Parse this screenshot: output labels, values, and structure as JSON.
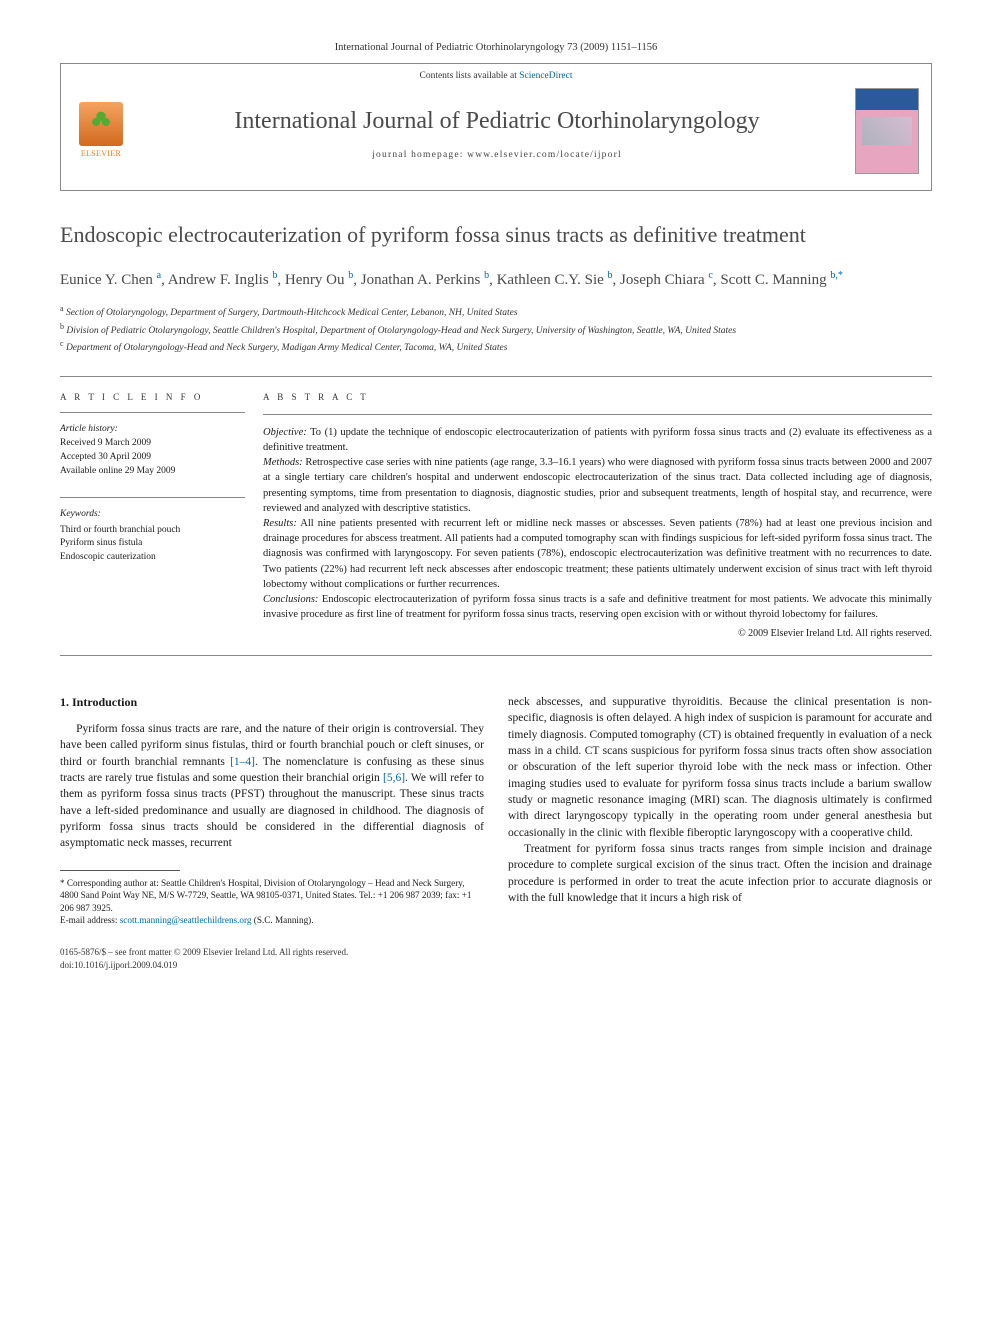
{
  "journal_ref": "International Journal of Pediatric Otorhinolaryngology 73 (2009) 1151–1156",
  "header": {
    "contents_prefix": "Contents lists available at ",
    "contents_link": "ScienceDirect",
    "journal_title": "International Journal of Pediatric Otorhinolaryngology",
    "homepage_label": "journal homepage: www.elsevier.com/locate/ijporl",
    "publisher_logo_text": "ELSEVIER"
  },
  "article": {
    "title": "Endoscopic electrocauterization of pyriform fossa sinus tracts as definitive treatment",
    "authors_html": "Eunice Y. Chen <sup>a</sup>, Andrew F. Inglis <sup>b</sup>, Henry Ou <sup>b</sup>, Jonathan A. Perkins <sup>b</sup>, Kathleen C.Y. Sie <sup>b</sup>, Joseph Chiara <sup>c</sup>, Scott C. Manning <sup>b,*</sup>",
    "affiliations": [
      {
        "sup": "a",
        "text": "Section of Otolaryngology, Department of Surgery, Dartmouth-Hitchcock Medical Center, Lebanon, NH, United States"
      },
      {
        "sup": "b",
        "text": "Division of Pediatric Otolaryngology, Seattle Children's Hospital, Department of Otolaryngology-Head and Neck Surgery, University of Washington, Seattle, WA, United States"
      },
      {
        "sup": "c",
        "text": "Department of Otolaryngology-Head and Neck Surgery, Madigan Army Medical Center, Tacoma, WA, United States"
      }
    ]
  },
  "info": {
    "heading": "A R T I C L E   I N F O",
    "history_label": "Article history:",
    "received": "Received 9 March 2009",
    "accepted": "Accepted 30 April 2009",
    "online": "Available online 29 May 2009",
    "keywords_label": "Keywords:",
    "keywords": [
      "Third or fourth branchial pouch",
      "Pyriform sinus fistula",
      "Endoscopic cauterization"
    ]
  },
  "abstract": {
    "heading": "A B S T R A C T",
    "objective_label": "Objective:",
    "objective": " To (1) update the technique of endoscopic electrocauterization of patients with pyriform fossa sinus tracts and (2) evaluate its effectiveness as a definitive treatment.",
    "methods_label": "Methods:",
    "methods": " Retrospective case series with nine patients (age range, 3.3–16.1 years) who were diagnosed with pyriform fossa sinus tracts between 2000 and 2007 at a single tertiary care children's hospital and underwent endoscopic electrocauterization of the sinus tract. Data collected including age of diagnosis, presenting symptoms, time from presentation to diagnosis, diagnostic studies, prior and subsequent treatments, length of hospital stay, and recurrence, were reviewed and analyzed with descriptive statistics.",
    "results_label": "Results:",
    "results": " All nine patients presented with recurrent left or midline neck masses or abscesses. Seven patients (78%) had at least one previous incision and drainage procedures for abscess treatment. All patients had a computed tomography scan with findings suspicious for left-sided pyriform fossa sinus tract. The diagnosis was confirmed with laryngoscopy. For seven patients (78%), endoscopic electrocauterization was definitive treatment with no recurrences to date. Two patients (22%) had recurrent left neck abscesses after endoscopic treatment; these patients ultimately underwent excision of sinus tract with left thyroid lobectomy without complications or further recurrences.",
    "conclusions_label": "Conclusions:",
    "conclusions": " Endoscopic electrocauterization of pyriform fossa sinus tracts is a safe and definitive treatment for most patients. We advocate this minimally invasive procedure as first line of treatment for pyriform fossa sinus tracts, reserving open excision with or without thyroid lobectomy for failures.",
    "copyright": "© 2009 Elsevier Ireland Ltd. All rights reserved."
  },
  "body": {
    "section_number": "1.",
    "section_title": "Introduction",
    "col1_p1_a": "Pyriform fossa sinus tracts are rare, and the nature of their origin is controversial. They have been called pyriform sinus fistulas, third or fourth branchial pouch or cleft sinuses, or third or fourth branchial remnants ",
    "col1_p1_ref1": "[1–4]",
    "col1_p1_b": ". The nomenclature is confusing as these sinus tracts are rarely true fistulas and some question their branchial origin ",
    "col1_p1_ref2": "[5,6]",
    "col1_p1_c": ". We will refer to them as pyriform fossa sinus tracts (PFST) throughout the manuscript. These sinus tracts have a left-sided predominance and usually are diagnosed in childhood. The diagnosis of pyriform fossa sinus tracts should be considered in the differential diagnosis of asymptomatic neck masses, recurrent",
    "col2_p1": "neck abscesses, and suppurative thyroiditis. Because the clinical presentation is non-specific, diagnosis is often delayed. A high index of suspicion is paramount for accurate and timely diagnosis. Computed tomography (CT) is obtained frequently in evaluation of a neck mass in a child. CT scans suspicious for pyriform fossa sinus tracts often show association or obscuration of the left superior thyroid lobe with the neck mass or infection. Other imaging studies used to evaluate for pyriform fossa sinus tracts include a barium swallow study or magnetic resonance imaging (MRI) scan. The diagnosis ultimately is confirmed with direct laryngoscopy typically in the operating room under general anesthesia but occasionally in the clinic with flexible fiberoptic laryngoscopy with a cooperative child.",
    "col2_p2": "Treatment for pyriform fossa sinus tracts ranges from simple incision and drainage procedure to complete surgical excision of the sinus tract. Often the incision and drainage procedure is performed in order to treat the acute infection prior to accurate diagnosis or with the full knowledge that it incurs a high risk of"
  },
  "footnote": {
    "corresponding": "* Corresponding author at: Seattle Children's Hospital, Division of Otolaryngology – Head and Neck Surgery, 4800 Sand Point Way NE, M/S W-7729, Seattle, WA 98105-0371, United States. Tel.: +1 206 987 2039; fax: +1 206 987 3925.",
    "email_label": "E-mail address: ",
    "email": "scott.manning@seattlechildrens.org",
    "email_suffix": " (S.C. Manning)."
  },
  "footer": {
    "front_matter": "0165-5876/$ – see front matter © 2009 Elsevier Ireland Ltd. All rights reserved.",
    "doi": "doi:10.1016/j.ijporl.2009.04.019"
  },
  "colors": {
    "link": "#0066aa",
    "text": "#1a1a1a",
    "heading_gray": "#4a4a4a",
    "rule": "#888888"
  }
}
